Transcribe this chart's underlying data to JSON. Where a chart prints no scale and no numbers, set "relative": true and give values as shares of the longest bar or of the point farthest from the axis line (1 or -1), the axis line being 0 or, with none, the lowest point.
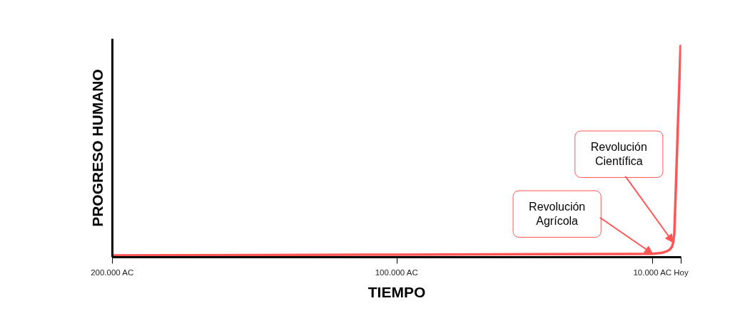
{
  "chart_data": {
    "type": "line",
    "xlabel": "TIEMPO",
    "ylabel": "PROGRESO HUMANO",
    "relative": true,
    "x": [
      -200000,
      -150000,
      -100000,
      -50000,
      -20000,
      -10000,
      -7000,
      -5000,
      -4000,
      -3200,
      -2800,
      -2400,
      -1800,
      -1200,
      -700,
      -200
    ],
    "series": [
      {
        "color": "#ff5555",
        "values": [
          0.008,
          0.01,
          0.012,
          0.014,
          0.015,
          0.016,
          0.02,
          0.028,
          0.036,
          0.05,
          0.07,
          0.11,
          0.35,
          0.6,
          0.8,
          1
        ]
      }
    ],
    "xlim": [
      -200000,
      0
    ],
    "xticks": [
      {
        "value": -200000,
        "label": "200.000 AC"
      },
      {
        "value": -100000,
        "label": "100.000 AC"
      },
      {
        "value": -10000,
        "label": "10.000 AC"
      },
      {
        "value": 0,
        "label": "Hoy"
      }
    ],
    "annotations": [
      {
        "text": "Revolución Agrícola",
        "x": -10000,
        "y": 0.016
      },
      {
        "text": "Revolución Científica",
        "x": -2800,
        "y": 0.07
      }
    ],
    "grid": false,
    "line_style": "solid"
  }
}
